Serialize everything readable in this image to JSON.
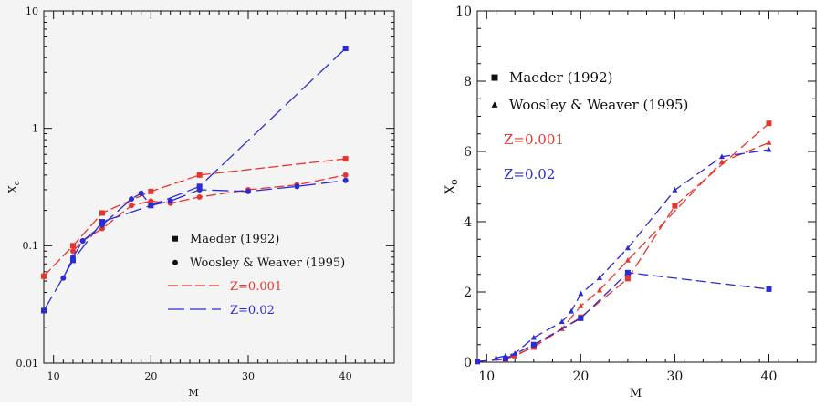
{
  "chart_data": [
    {
      "type": "line",
      "xlabel": "M",
      "ylabel": "X_c",
      "xlim": [
        9,
        45
      ],
      "ylim": [
        0.01,
        10
      ],
      "log_y": true,
      "x_ticks": [
        10,
        20,
        30,
        40
      ],
      "x_tick_labels": [
        "10",
        "20",
        "30",
        "40"
      ],
      "y_ticks": [
        0.01,
        0.1,
        1,
        10
      ],
      "y_tick_labels": [
        "0.01",
        "0.1",
        "1",
        "10"
      ],
      "legend": {
        "placement": "lower-right",
        "markers": [
          {
            "symbol": "square",
            "label": "Maeder (1992)"
          },
          {
            "symbol": "circle",
            "label": "Woosley & Weaver (1995)"
          }
        ],
        "lines": [
          {
            "label": "Z=0.001",
            "color": "#e8342c",
            "dash": "short"
          },
          {
            "label": "Z=0.02",
            "color": "#2b2bd6",
            "dash": "long"
          }
        ]
      },
      "series": [
        {
          "color": "#e8342c",
          "marker": "square",
          "dash": "short",
          "x": [
            9,
            12,
            15,
            20,
            25,
            40
          ],
          "y": [
            0.055,
            0.1,
            0.19,
            0.29,
            0.4,
            0.55
          ]
        },
        {
          "color": "#e8342c",
          "marker": "circle",
          "dash": "short",
          "x": [
            12,
            13,
            15,
            18,
            20,
            22,
            25,
            30,
            35,
            40
          ],
          "y": [
            0.09,
            0.11,
            0.14,
            0.22,
            0.24,
            0.23,
            0.26,
            0.3,
            0.33,
            0.4
          ]
        },
        {
          "color": "#2b2bd6",
          "marker": "square",
          "dash": "long",
          "x": [
            9,
            12,
            15,
            20,
            25,
            40
          ],
          "y": [
            0.028,
            0.075,
            0.16,
            0.22,
            0.32,
            4.8
          ]
        },
        {
          "color": "#2b2bd6",
          "marker": "circle",
          "dash": "long",
          "x": [
            11,
            12,
            13,
            15,
            18,
            19,
            20,
            22,
            25,
            30,
            35,
            40
          ],
          "y": [
            0.053,
            0.08,
            0.11,
            0.15,
            0.25,
            0.28,
            0.22,
            0.24,
            0.3,
            0.29,
            0.32,
            0.36
          ]
        }
      ]
    },
    {
      "type": "line",
      "xlabel": "M",
      "ylabel": "X_o",
      "xlim": [
        9,
        45
      ],
      "ylim": [
        0,
        10
      ],
      "x_ticks": [
        10,
        20,
        30,
        40
      ],
      "x_tick_labels": [
        "10",
        "20",
        "30",
        "40"
      ],
      "y_ticks": [
        0,
        2,
        4,
        6,
        8,
        10
      ],
      "y_tick_labels": [
        "0",
        "2",
        "4",
        "6",
        "8",
        "10"
      ],
      "legend": {
        "placement": "upper-left",
        "markers": [
          {
            "symbol": "square",
            "label": "Maeder (1992)"
          },
          {
            "symbol": "triangle",
            "label": "Woosley & Weaver (1995)"
          }
        ],
        "texts": [
          {
            "label": "Z=0.001",
            "color": "#e8342c"
          },
          {
            "label": "Z=0.02",
            "color": "#2b2bd6"
          }
        ]
      },
      "series": [
        {
          "color": "#e8342c",
          "marker": "square",
          "dash": "long",
          "x": [
            9,
            12,
            15,
            20,
            25,
            30,
            40
          ],
          "y": [
            0.02,
            0.08,
            0.43,
            1.28,
            2.38,
            4.45,
            6.8
          ]
        },
        {
          "color": "#e8342c",
          "marker": "triangle",
          "dash": "long",
          "x": [
            12,
            13,
            15,
            18,
            20,
            22,
            25,
            35,
            40
          ],
          "y": [
            0.1,
            0.17,
            0.45,
            0.95,
            1.6,
            2.05,
            2.9,
            5.7,
            6.25
          ]
        },
        {
          "color": "#2b2bd6",
          "marker": "square",
          "dash": "long",
          "x": [
            9,
            12,
            15,
            20,
            25,
            40
          ],
          "y": [
            0.02,
            0.1,
            0.5,
            1.25,
            2.55,
            2.08
          ]
        },
        {
          "color": "#2b2bd6",
          "marker": "triangle",
          "dash": "long",
          "x": [
            11,
            12,
            13,
            15,
            18,
            19,
            20,
            22,
            25,
            30,
            35,
            40
          ],
          "y": [
            0.12,
            0.18,
            0.25,
            0.7,
            1.15,
            1.45,
            1.95,
            2.4,
            3.25,
            4.9,
            5.85,
            6.05
          ]
        }
      ]
    }
  ]
}
